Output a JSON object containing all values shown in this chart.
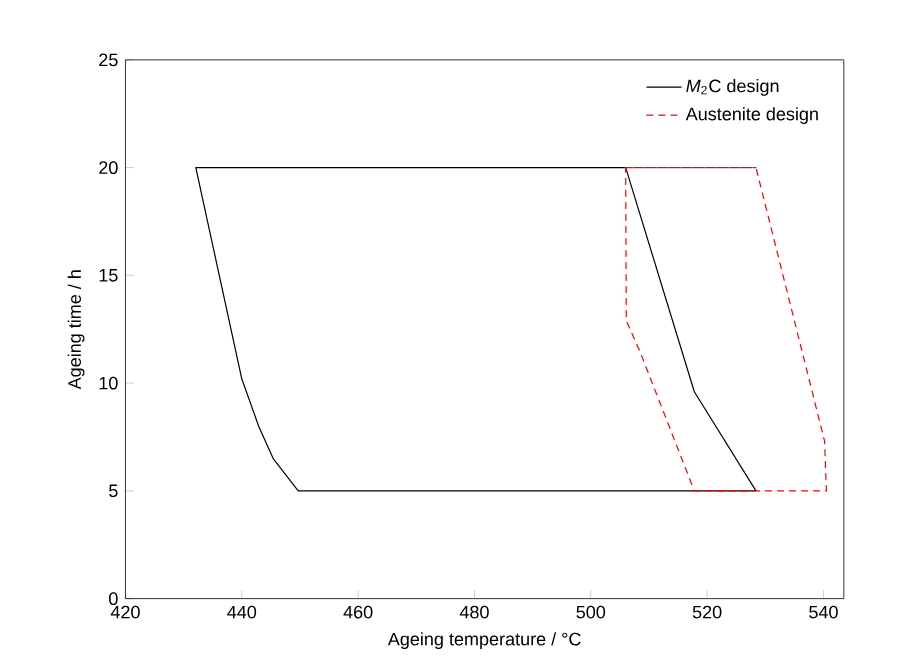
{
  "chart_data": {
    "type": "line",
    "xlabel": "Ageing temperature / °C",
    "ylabel": "Ageing time / h",
    "xlim": [
      420,
      543.5
    ],
    "xticks": [
      420,
      440,
      460,
      480,
      500,
      520,
      540
    ],
    "ylim": [
      0,
      25
    ],
    "yticks": [
      0,
      5,
      10,
      15,
      20,
      25
    ],
    "legend": "top right",
    "marker": "none",
    "grid": false,
    "series": [
      {
        "name": "*M*$_{2}$C design",
        "color": "#000000",
        "line_style": "solid",
        "x": [
          432.1,
          440,
          442.9,
          445.4,
          449.7,
          528.4,
          517.8,
          506,
          432.1,
          440
        ],
        "values": [
          20,
          10.2,
          8,
          6.5,
          5,
          5,
          9.6,
          20,
          20,
          10.2
        ]
      },
      {
        "name": "Austenite design",
        "color": "#ff0000",
        "line_style": "dashed",
        "x": [
          506,
          528.4,
          540.2,
          540.5,
          517.8,
          508.4,
          506.1,
          506,
          528.4
        ],
        "values": [
          20,
          20,
          7.3,
          5,
          5,
          11.5,
          12.9,
          20,
          20
        ]
      }
    ]
  }
}
